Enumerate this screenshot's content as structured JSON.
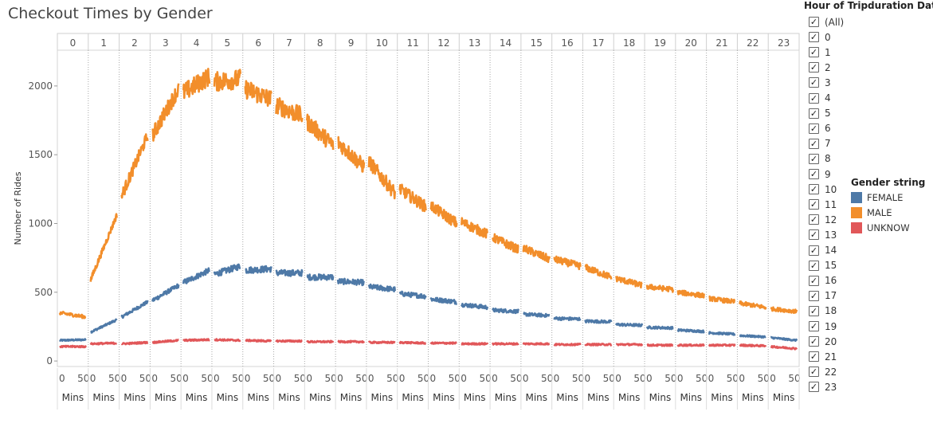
{
  "title": "Checkout Times by Gender",
  "filter": {
    "title": "Hour of Tripduration Date",
    "all_label": "(All)",
    "items": [
      "0",
      "1",
      "2",
      "3",
      "4",
      "5",
      "6",
      "7",
      "8",
      "9",
      "10",
      "11",
      "12",
      "13",
      "14",
      "15",
      "16",
      "17",
      "18",
      "19",
      "20",
      "21",
      "22",
      "23"
    ],
    "checked_glyph": "✓"
  },
  "legend": {
    "title": "Gender string",
    "items": [
      {
        "label": "FEMALE",
        "color": "#4e79a7"
      },
      {
        "label": "MALE",
        "color": "#f28e2b"
      },
      {
        "label": "UNKNOW",
        "color": "#e15759"
      }
    ]
  },
  "chart_data": {
    "type": "line",
    "title": "Checkout Times by Gender",
    "ylabel": "Number of Rides",
    "xlabel": "Mins",
    "panel_header": "Hour of Tripduration Date",
    "panels": [
      "0",
      "1",
      "2",
      "3",
      "4",
      "5",
      "6",
      "7",
      "8",
      "9",
      "10",
      "11",
      "12",
      "13",
      "14",
      "15",
      "16",
      "17",
      "18",
      "19",
      "20",
      "21",
      "22",
      "23"
    ],
    "x_ticks": [
      "0",
      "50"
    ],
    "x_unit_label": "Mins",
    "xlim": [
      0,
      59
    ],
    "ylim": [
      -40,
      2260
    ],
    "y_ticks": [
      0,
      500,
      1000,
      1500,
      2000
    ],
    "grid": false,
    "legend_position": "right",
    "series": [
      {
        "name": "FEMALE",
        "color": "#4e79a7",
        "start": [
          150,
          210,
          320,
          440,
          570,
          630,
          660,
          640,
          610,
          580,
          540,
          490,
          450,
          410,
          370,
          340,
          310,
          290,
          265,
          245,
          225,
          205,
          185,
          170
        ],
        "end": [
          155,
          300,
          430,
          550,
          660,
          690,
          670,
          640,
          610,
          570,
          520,
          470,
          430,
          390,
          360,
          330,
          305,
          285,
          260,
          240,
          215,
          195,
          175,
          150
        ]
      },
      {
        "name": "MALE",
        "color": "#f28e2b",
        "start": [
          350,
          590,
          1200,
          1640,
          1950,
          2030,
          1980,
          1860,
          1740,
          1590,
          1450,
          1250,
          1130,
          1010,
          900,
          820,
          740,
          680,
          600,
          540,
          500,
          455,
          420,
          380
        ],
        "end": [
          320,
          1060,
          1640,
          1980,
          2070,
          2050,
          1900,
          1780,
          1570,
          1410,
          1220,
          1120,
          1000,
          920,
          810,
          740,
          690,
          610,
          550,
          520,
          475,
          430,
          390,
          360
        ]
      },
      {
        "name": "UNKNOW",
        "color": "#e15759",
        "start": [
          105,
          125,
          125,
          135,
          150,
          155,
          150,
          145,
          140,
          140,
          135,
          135,
          130,
          125,
          125,
          125,
          120,
          120,
          120,
          115,
          115,
          115,
          115,
          105
        ],
        "end": [
          105,
          130,
          135,
          150,
          155,
          150,
          145,
          145,
          140,
          140,
          135,
          130,
          130,
          125,
          125,
          125,
          120,
          120,
          120,
          115,
          115,
          115,
          110,
          90
        ]
      }
    ]
  }
}
